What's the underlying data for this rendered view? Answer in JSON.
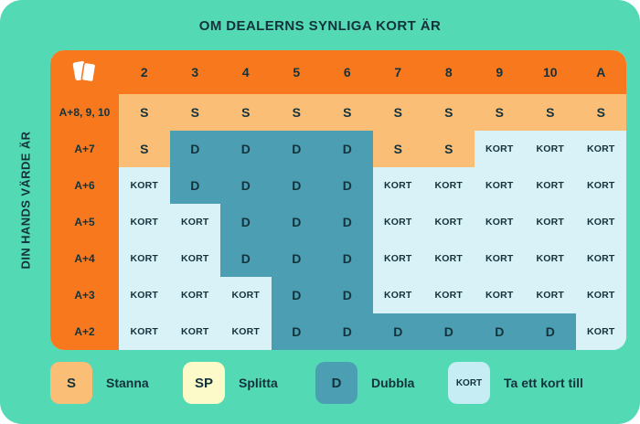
{
  "title": "OM DEALERNS SYNLIGA KORT ÄR",
  "y_axis_label": "DIN HANDS VÄRDE ÄR",
  "corner_icon": "playing-cards-icon",
  "chart_data": {
    "type": "table",
    "title": "OM DEALERNS SYNLIGA KORT ÄR",
    "ylabel": "DIN HANDS VÄRDE ÄR",
    "columns": [
      "2",
      "3",
      "4",
      "5",
      "6",
      "7",
      "8",
      "9",
      "10",
      "A"
    ],
    "row_labels": [
      "A+8, 9, 10",
      "A+7",
      "A+6",
      "A+5",
      "A+4",
      "A+3",
      "A+2"
    ],
    "values": [
      [
        "S",
        "S",
        "S",
        "S",
        "S",
        "S",
        "S",
        "S",
        "S",
        "S"
      ],
      [
        "S",
        "D",
        "D",
        "D",
        "D",
        "S",
        "S",
        "KORT",
        "KORT",
        "KORT"
      ],
      [
        "KORT",
        "D",
        "D",
        "D",
        "D",
        "KORT",
        "KORT",
        "KORT",
        "KORT",
        "KORT"
      ],
      [
        "KORT",
        "KORT",
        "D",
        "D",
        "D",
        "KORT",
        "KORT",
        "KORT",
        "KORT",
        "KORT"
      ],
      [
        "KORT",
        "KORT",
        "D",
        "D",
        "D",
        "KORT",
        "KORT",
        "KORT",
        "KORT",
        "KORT"
      ],
      [
        "KORT",
        "KORT",
        "KORT",
        "D",
        "D",
        "KORT",
        "KORT",
        "KORT",
        "KORT",
        "KORT"
      ],
      [
        "KORT",
        "KORT",
        "KORT",
        "D",
        "D",
        "D",
        "D",
        "D",
        "D",
        "KORT"
      ]
    ],
    "value_meanings": {
      "S": "Stanna",
      "SP": "Splitta",
      "D": "Dubbla",
      "KORT": "Ta ett kort till"
    }
  },
  "legend": [
    {
      "code": "S",
      "label": "Stanna",
      "color": "#FBBE76"
    },
    {
      "code": "SP",
      "label": "Splitta",
      "color": "#FCFAC9"
    },
    {
      "code": "D",
      "label": "Dubbla",
      "color": "#4C9EB3"
    },
    {
      "code": "KORT",
      "label": "Ta ett kort till",
      "color": "#C6EDF4"
    }
  ],
  "colors": {
    "background": "#53D9B4",
    "header": "#F8791D",
    "stand": "#FBBE76",
    "double": "#4C9EB3",
    "hit": "#D8F2F7",
    "text": "#14323C"
  }
}
